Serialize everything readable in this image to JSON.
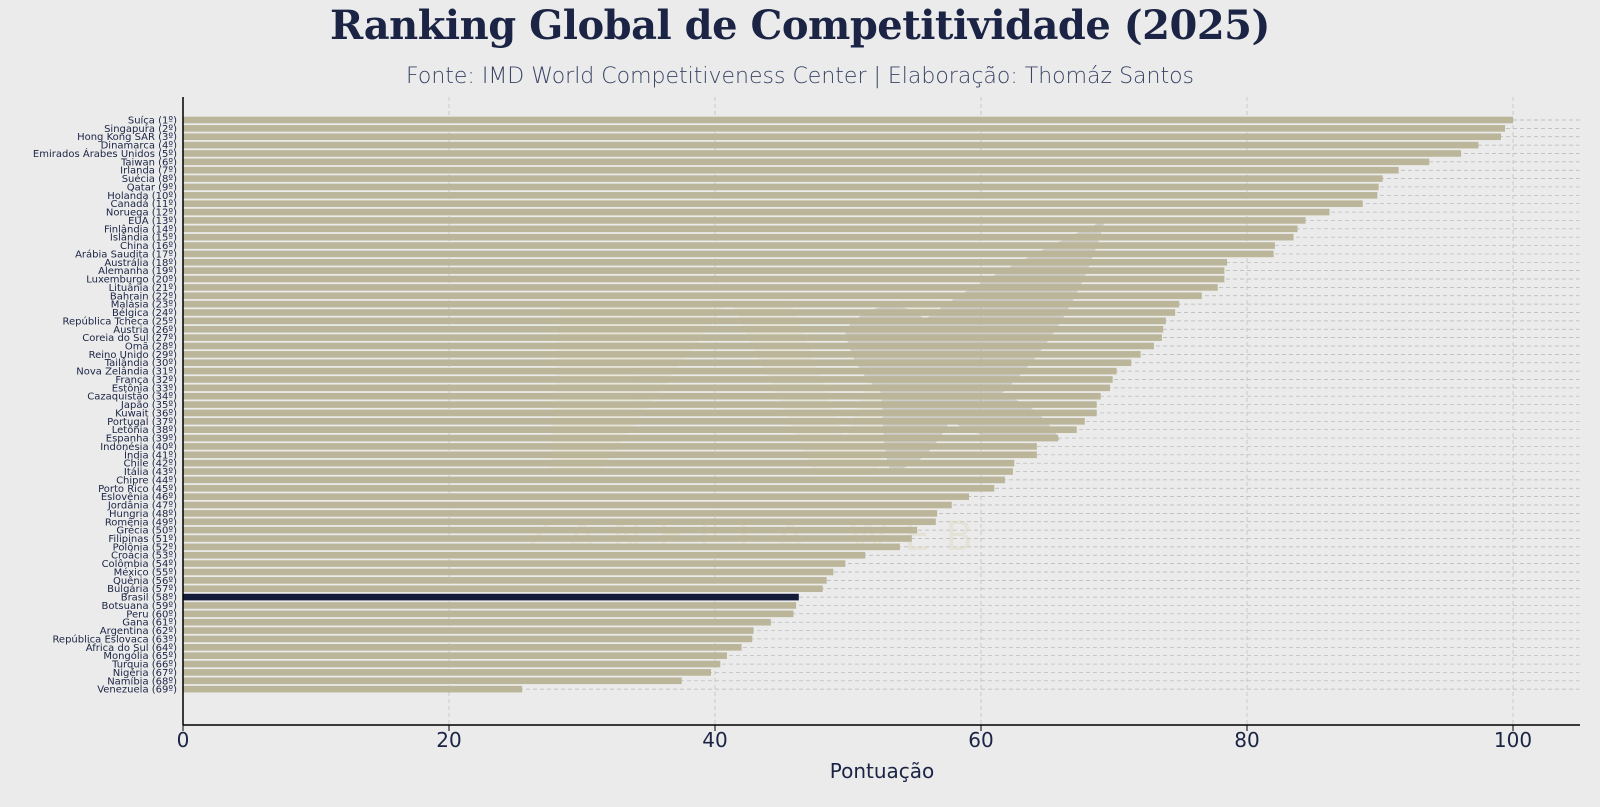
{
  "chart_data": {
    "type": "bar",
    "orientation": "horizontal",
    "title": "Ranking Global de Competitividade (2025)",
    "subtitle": "Fonte: IMD World Competitiveness Center | Elaboração: Thomáz Santos",
    "xlabel": "Pontuação",
    "ylabel": "",
    "xlim": [
      0,
      105
    ],
    "xticks": [
      0,
      20,
      40,
      60,
      80,
      100
    ],
    "grid": "x-dashed",
    "highlight": "Brasil (58º)",
    "colors": {
      "bar": "#bbb69a",
      "highlight": "#141c3a",
      "text": "#1b2444",
      "background": "#ebebeb"
    },
    "watermark": "ZANELLA WEB",
    "categories": [
      "Suíça (1º)",
      "Singapura (2º)",
      "Hong Kong SAR (3º)",
      "Dinamarca (4º)",
      "Emirados Árabes Unidos (5º)",
      "Taiwan (6º)",
      "Irlanda (7º)",
      "Suécia (8º)",
      "Qatar (9º)",
      "Holanda (10º)",
      "Canadá (11º)",
      "Noruega (12º)",
      "EUA (13º)",
      "Finlândia (14º)",
      "Islândia (15º)",
      "China (16º)",
      "Arábia Saudita (17º)",
      "Austrália (18º)",
      "Alemanha (19º)",
      "Luxemburgo (20º)",
      "Lituânia (21º)",
      "Bahrain (22º)",
      "Malásia (23º)",
      "Bélgica (24º)",
      "República Tcheca (25º)",
      "Áustria (26º)",
      "Coreia do Sul (27º)",
      "Omã (28º)",
      "Reino Unido (29º)",
      "Tailândia (30º)",
      "Nova Zelândia (31º)",
      "França (32º)",
      "Estônia (33º)",
      "Cazaquistão (34º)",
      "Japão (35º)",
      "Kuwait (36º)",
      "Portugal (37º)",
      "Letônia (38º)",
      "Espanha (39º)",
      "Indonésia (40º)",
      "Índia (41º)",
      "Chile (42º)",
      "Itália (43º)",
      "Chipre (44º)",
      "Porto Rico (45º)",
      "Eslovênia (46º)",
      "Jordânia (47º)",
      "Hungria (48º)",
      "Romênia (49º)",
      "Grécia (50º)",
      "Filipinas (51º)",
      "Polônia (52º)",
      "Croácia (53º)",
      "Colômbia (54º)",
      "México (55º)",
      "Quênia (56º)",
      "Bulgária (57º)",
      "Brasil (58º)",
      "Botsuana (59º)",
      "Peru (60º)",
      "Gana (61º)",
      "Argentina (62º)",
      "República Eslovaca (63º)",
      "África do Sul (64º)",
      "Mongólia (65º)",
      "Turquia (66º)",
      "Nigéria (67º)",
      "Namíbia (68º)",
      "Venezuela (69º)"
    ],
    "values": [
      100.0,
      99.4,
      99.1,
      97.4,
      96.1,
      93.7,
      91.4,
      90.2,
      89.9,
      89.8,
      88.7,
      86.2,
      84.4,
      83.8,
      83.5,
      82.1,
      82.0,
      78.5,
      78.3,
      78.3,
      77.8,
      76.6,
      74.9,
      74.6,
      73.9,
      73.7,
      73.6,
      73.0,
      72.0,
      71.3,
      70.2,
      69.9,
      69.7,
      69.0,
      68.7,
      68.7,
      67.8,
      67.2,
      65.8,
      64.2,
      64.2,
      62.5,
      62.4,
      61.8,
      61.0,
      59.1,
      57.8,
      56.7,
      56.6,
      55.2,
      54.8,
      53.9,
      51.3,
      49.8,
      48.9,
      48.4,
      48.1,
      46.3,
      46.1,
      45.9,
      44.2,
      42.9,
      42.8,
      42.0,
      40.9,
      40.4,
      39.7,
      37.5,
      25.5
    ]
  }
}
